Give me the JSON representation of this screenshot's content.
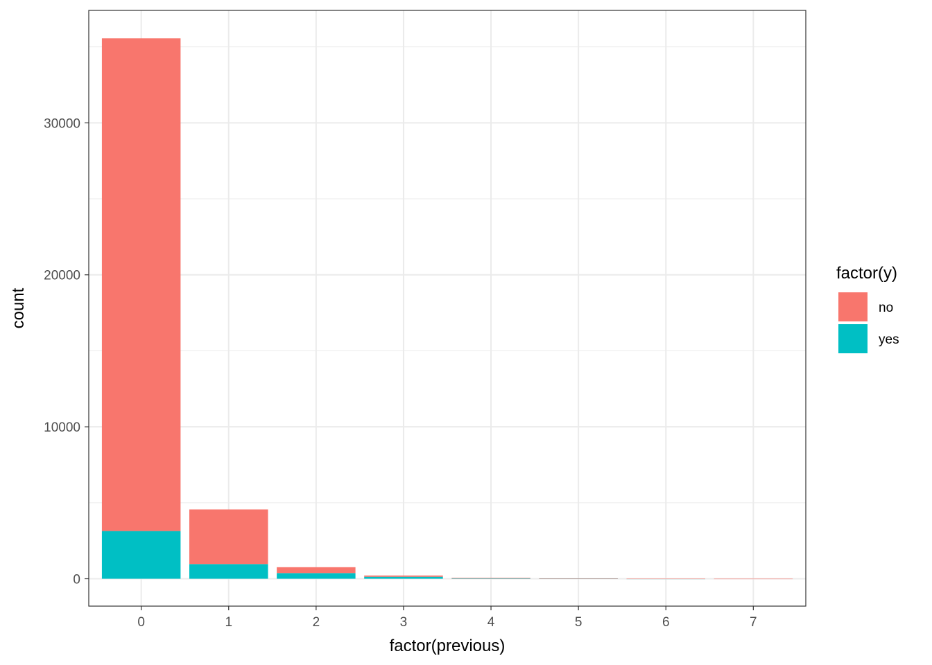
{
  "chart_data": {
    "type": "bar",
    "stacked": true,
    "xlabel": "factor(previous)",
    "ylabel": "count",
    "categories": [
      "0",
      "1",
      "2",
      "3",
      "4",
      "5",
      "6",
      "7"
    ],
    "series": [
      {
        "name": "no",
        "color": "#F8766D",
        "values": [
          32422,
          3594,
          387,
          88,
          38,
          13,
          2,
          1
        ]
      },
      {
        "name": "yes",
        "color": "#00BFC4",
        "values": [
          3141,
          967,
          374,
          128,
          32,
          5,
          1,
          0
        ]
      }
    ],
    "ylim": [
      -1800,
      37400
    ],
    "yticks": [
      0,
      10000,
      20000,
      30000
    ],
    "grid": true,
    "legend": {
      "title": "factor(y)",
      "position": "right",
      "entries": [
        "no",
        "yes"
      ]
    }
  }
}
